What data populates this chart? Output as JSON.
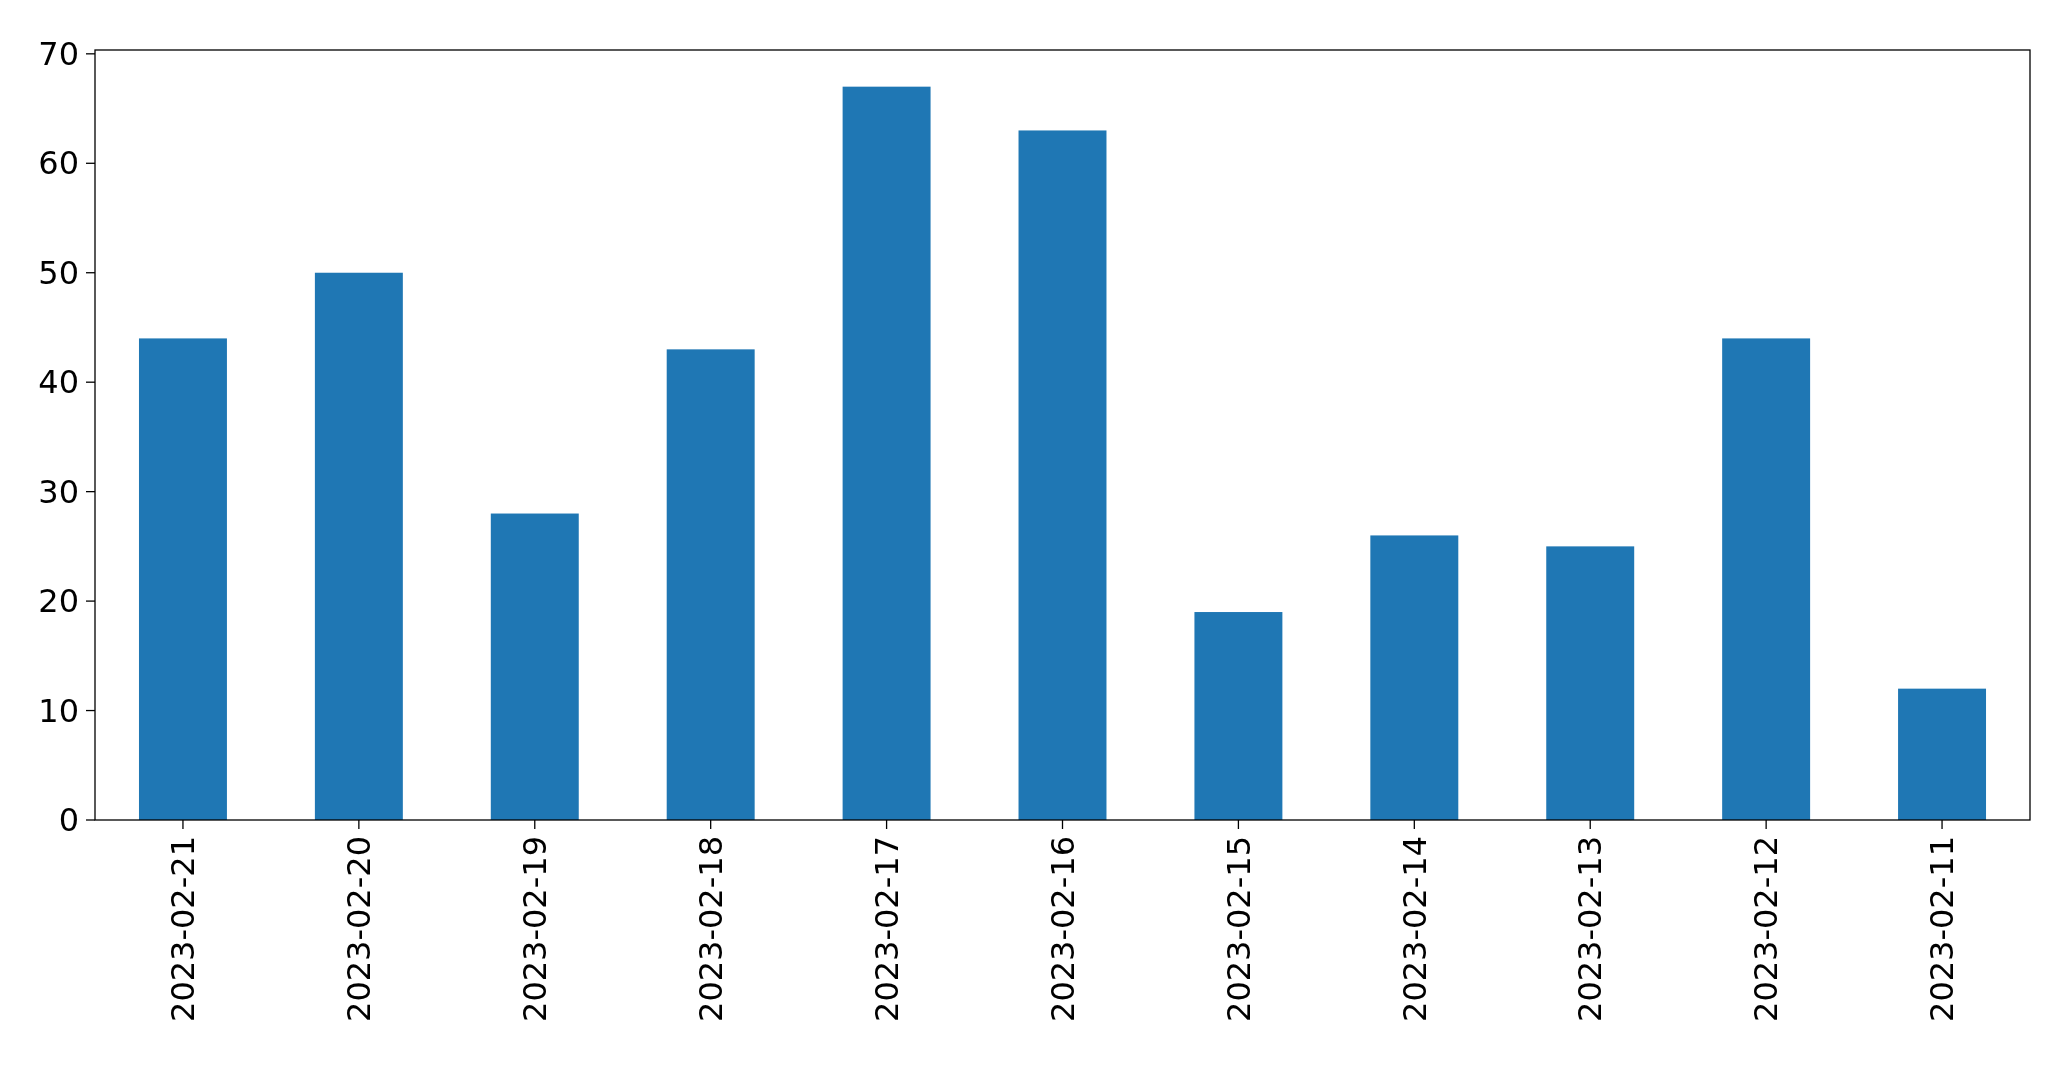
{
  "chart_data": {
    "type": "bar",
    "categories": [
      "2023-02-21",
      "2023-02-20",
      "2023-02-19",
      "2023-02-18",
      "2023-02-17",
      "2023-02-16",
      "2023-02-15",
      "2023-02-14",
      "2023-02-13",
      "2023-02-12",
      "2023-02-11"
    ],
    "values": [
      44,
      50,
      28,
      43,
      67,
      63,
      19,
      26,
      25,
      44,
      12
    ],
    "color": "#1f77b4",
    "ylim": [
      0,
      70.35
    ],
    "yticks": [
      0,
      10,
      20,
      30,
      40,
      50,
      60,
      70
    ],
    "grid": false
  }
}
